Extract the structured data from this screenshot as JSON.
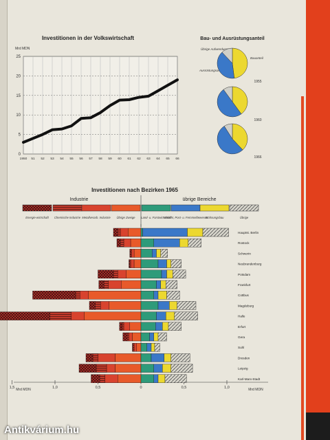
{
  "watermark": "Antikvárium.hu",
  "colors": {
    "energie": "#b8322a",
    "chemie": "#c23a2c",
    "metall": "#d8432e",
    "uebrige_ind": "#e85a2a",
    "land": "#2e9b7a",
    "verkehr": "#3a78c8",
    "wohnung": "#ecd830",
    "uebrige": "#cfcfc8",
    "line": "#111111"
  },
  "line_chart": {
    "title": "Investitionen in der Volkswirtschaft",
    "unit": "Mrd MDN",
    "y_ticks": [
      "25",
      "20",
      "15",
      "10",
      "5",
      "0"
    ],
    "x_ticks": [
      "1950",
      "51",
      "52",
      "53",
      "54",
      "55",
      "56",
      "57",
      "58",
      "59",
      "60",
      "61",
      "62",
      "63",
      "64",
      "65",
      "66"
    ]
  },
  "pies": {
    "title": "Bau- und Ausrüstungsanteil",
    "label_other": "Übrige Aufwendungen",
    "label_equipment": "Ausrüstungsanteil",
    "label_building": "Bauanteil",
    "years": [
      "1955",
      "1960",
      "1966"
    ]
  },
  "bar_chart": {
    "title": "Investitionen nach Bezirken 1965",
    "left_group": "Industrie",
    "right_group": "übrige Bereiche",
    "legend": [
      "Energie-wirtschaft",
      "Chemische Industrie",
      "Metallverarb. Industrie",
      "Übrige Zweige",
      "Land- u. Forstwirtschaft",
      "Verkehr, Post- u. Fernmeldewesen",
      "Wohnungsbau",
      "Übrige"
    ],
    "axis_left_unit": "Mrd MDN",
    "axis_right_unit": "Mrd MDN",
    "tick_labels": [
      "1,5",
      "1,0",
      "0,5",
      "0",
      "0,5",
      "1,0"
    ]
  },
  "chart_data": [
    {
      "type": "line",
      "title": "Investitionen in der Volkswirtschaft",
      "ylabel": "Mrd MDN",
      "ylim": [
        0,
        25
      ],
      "grid": true,
      "x": [
        1950,
        1951,
        1952,
        1953,
        1954,
        1955,
        1956,
        1957,
        1958,
        1959,
        1960,
        1961,
        1962,
        1963,
        1964,
        1965,
        1966
      ],
      "y": [
        3.0,
        4.0,
        5.0,
        6.2,
        6.4,
        7.2,
        9.1,
        9.3,
        10.6,
        12.4,
        13.8,
        13.9,
        14.5,
        14.8,
        16.2,
        17.6,
        19.0
      ]
    },
    {
      "type": "pie",
      "title": "Bau- und Ausrüstungsanteil",
      "charts": [
        {
          "year": "1955",
          "slices": [
            {
              "label": "Bauanteil",
              "value": 48
            },
            {
              "label": "Ausrüstungsanteil",
              "value": 40
            },
            {
              "label": "Übrige Aufwendungen",
              "value": 12
            }
          ]
        },
        {
          "year": "1960",
          "slices": [
            {
              "label": "Bauanteil",
              "value": 40
            },
            {
              "label": "Ausrüstungsanteil",
              "value": 50
            },
            {
              "label": "Übrige Aufwendungen",
              "value": 10
            }
          ]
        },
        {
          "year": "1966",
          "slices": [
            {
              "label": "Bauanteil",
              "value": 38
            },
            {
              "label": "Ausrüstungsanteil",
              "value": 53
            },
            {
              "label": "Übrige Aufwendungen",
              "value": 9
            }
          ]
        }
      ]
    },
    {
      "type": "bar",
      "title": "Investitionen nach Bezirken 1965",
      "orientation": "horizontal-diverging",
      "unit": "Mrd MDN",
      "xlim_left": [
        0,
        1.5
      ],
      "xlim_right": [
        0,
        1.5
      ],
      "categories": [
        "Hauptst. Berlin",
        "Rostock",
        "Schwerin",
        "Neubrandenburg",
        "Potsdam",
        "Frankfurt",
        "Cottbus",
        "Magdeburg",
        "Halle",
        "Erfurt",
        "Gera",
        "Suhl",
        "Dresden",
        "Leipzig",
        "Karl-Marx-Stadt"
      ],
      "left_series": [
        {
          "name": "Energiewirtschaft",
          "values": [
            0.05,
            0.04,
            0.01,
            0.01,
            0.18,
            0.06,
            0.5,
            0.07,
            0.6,
            0.03,
            0.05,
            0.01,
            0.08,
            0.2,
            0.1
          ]
        },
        {
          "name": "Chemische Industrie",
          "values": [
            0.03,
            0.04,
            0.01,
            0.01,
            0.05,
            0.05,
            0.05,
            0.06,
            0.25,
            0.02,
            0.02,
            0.01,
            0.06,
            0.12,
            0.06
          ]
        },
        {
          "name": "Metallverarb. Industrie",
          "values": [
            0.09,
            0.08,
            0.03,
            0.04,
            0.1,
            0.15,
            0.1,
            0.1,
            0.15,
            0.07,
            0.04,
            0.03,
            0.2,
            0.1,
            0.15
          ]
        },
        {
          "name": "Übrige Zweige",
          "values": [
            0.15,
            0.12,
            0.08,
            0.08,
            0.17,
            0.23,
            0.61,
            0.37,
            0.66,
            0.13,
            0.1,
            0.05,
            0.3,
            0.3,
            0.27
          ]
        }
      ],
      "right_series": [
        {
          "name": "Land- u. Forstwirtschaft",
          "values": [
            0.02,
            0.15,
            0.13,
            0.2,
            0.24,
            0.18,
            0.15,
            0.2,
            0.18,
            0.17,
            0.1,
            0.07,
            0.12,
            0.15,
            0.15
          ]
        },
        {
          "name": "Verkehr, Post- u. Fernmeldewesen",
          "values": [
            0.52,
            0.3,
            0.05,
            0.1,
            0.06,
            0.05,
            0.05,
            0.13,
            0.11,
            0.08,
            0.05,
            0.05,
            0.15,
            0.1,
            0.05
          ]
        },
        {
          "name": "Wohnungsbau",
          "values": [
            0.18,
            0.1,
            0.05,
            0.05,
            0.07,
            0.06,
            0.1,
            0.09,
            0.1,
            0.07,
            0.05,
            0.04,
            0.08,
            0.1,
            0.08
          ]
        },
        {
          "name": "Übrige",
          "values": [
            0.3,
            0.15,
            0.08,
            0.12,
            0.15,
            0.13,
            0.15,
            0.22,
            0.27,
            0.15,
            0.1,
            0.06,
            0.22,
            0.25,
            0.25
          ]
        }
      ]
    }
  ]
}
